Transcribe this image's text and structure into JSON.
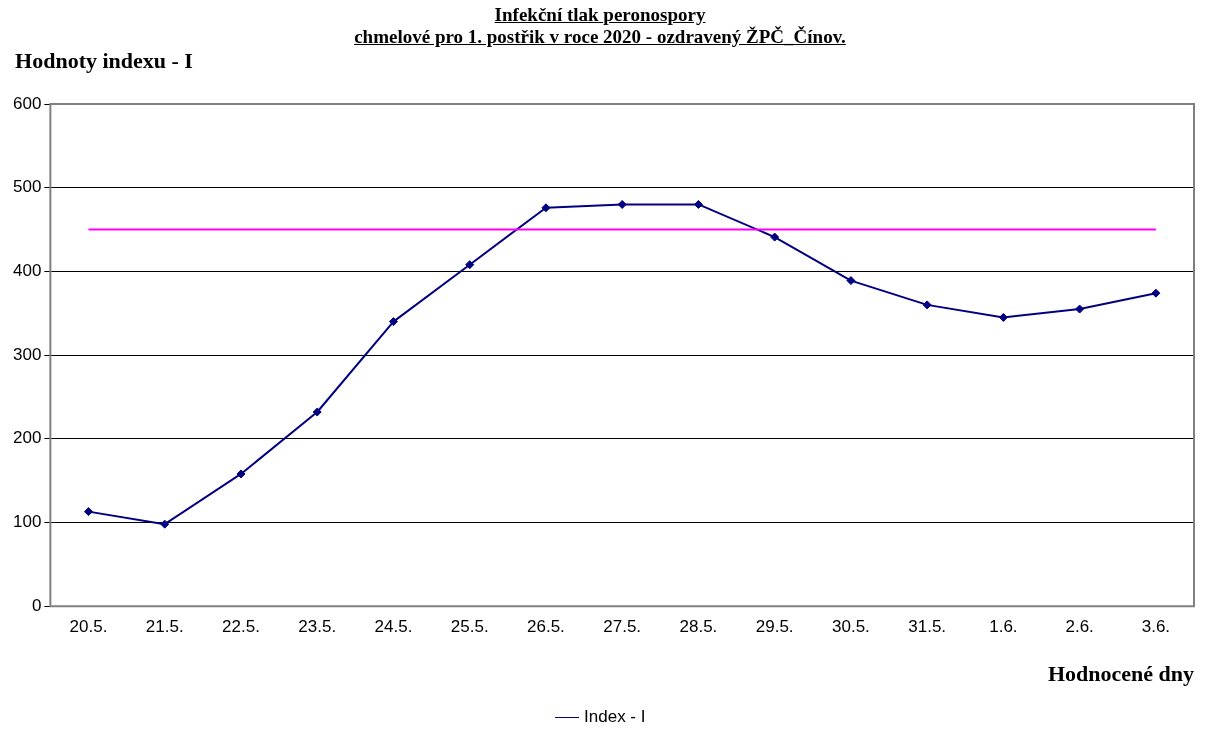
{
  "chart_data": {
    "type": "line",
    "title": "Infekční tlak peronospory\nchmelové pro 1. postřik v roce 2020 - ozdravený ŽPČ_Čínov.",
    "ylabel": "Hodnoty indexu - I",
    "xlabel": "Hodnocené dny",
    "categories": [
      "20.5.",
      "21.5.",
      "22.5.",
      "23.5.",
      "24.5.",
      "25.5.",
      "26.5.",
      "27.5.",
      "28.5.",
      "29.5.",
      "30.5.",
      "31.5.",
      "1.6.",
      "2.6.",
      "3.6."
    ],
    "series": [
      {
        "name": "Index - I",
        "color": "#000080",
        "values": [
          113,
          98,
          158,
          232,
          340,
          408,
          476,
          480,
          480,
          441,
          389,
          360,
          345,
          355,
          374
        ]
      }
    ],
    "ylim": [
      0,
      600
    ],
    "yticks": [
      0,
      100,
      200,
      300,
      400,
      500,
      600
    ],
    "grid": "y",
    "legend": "bottom",
    "marker": "diamond",
    "line_style": "solid",
    "ref_lines": [
      {
        "axis": "y",
        "value": 450,
        "color": "#ff00ff"
      }
    ]
  }
}
